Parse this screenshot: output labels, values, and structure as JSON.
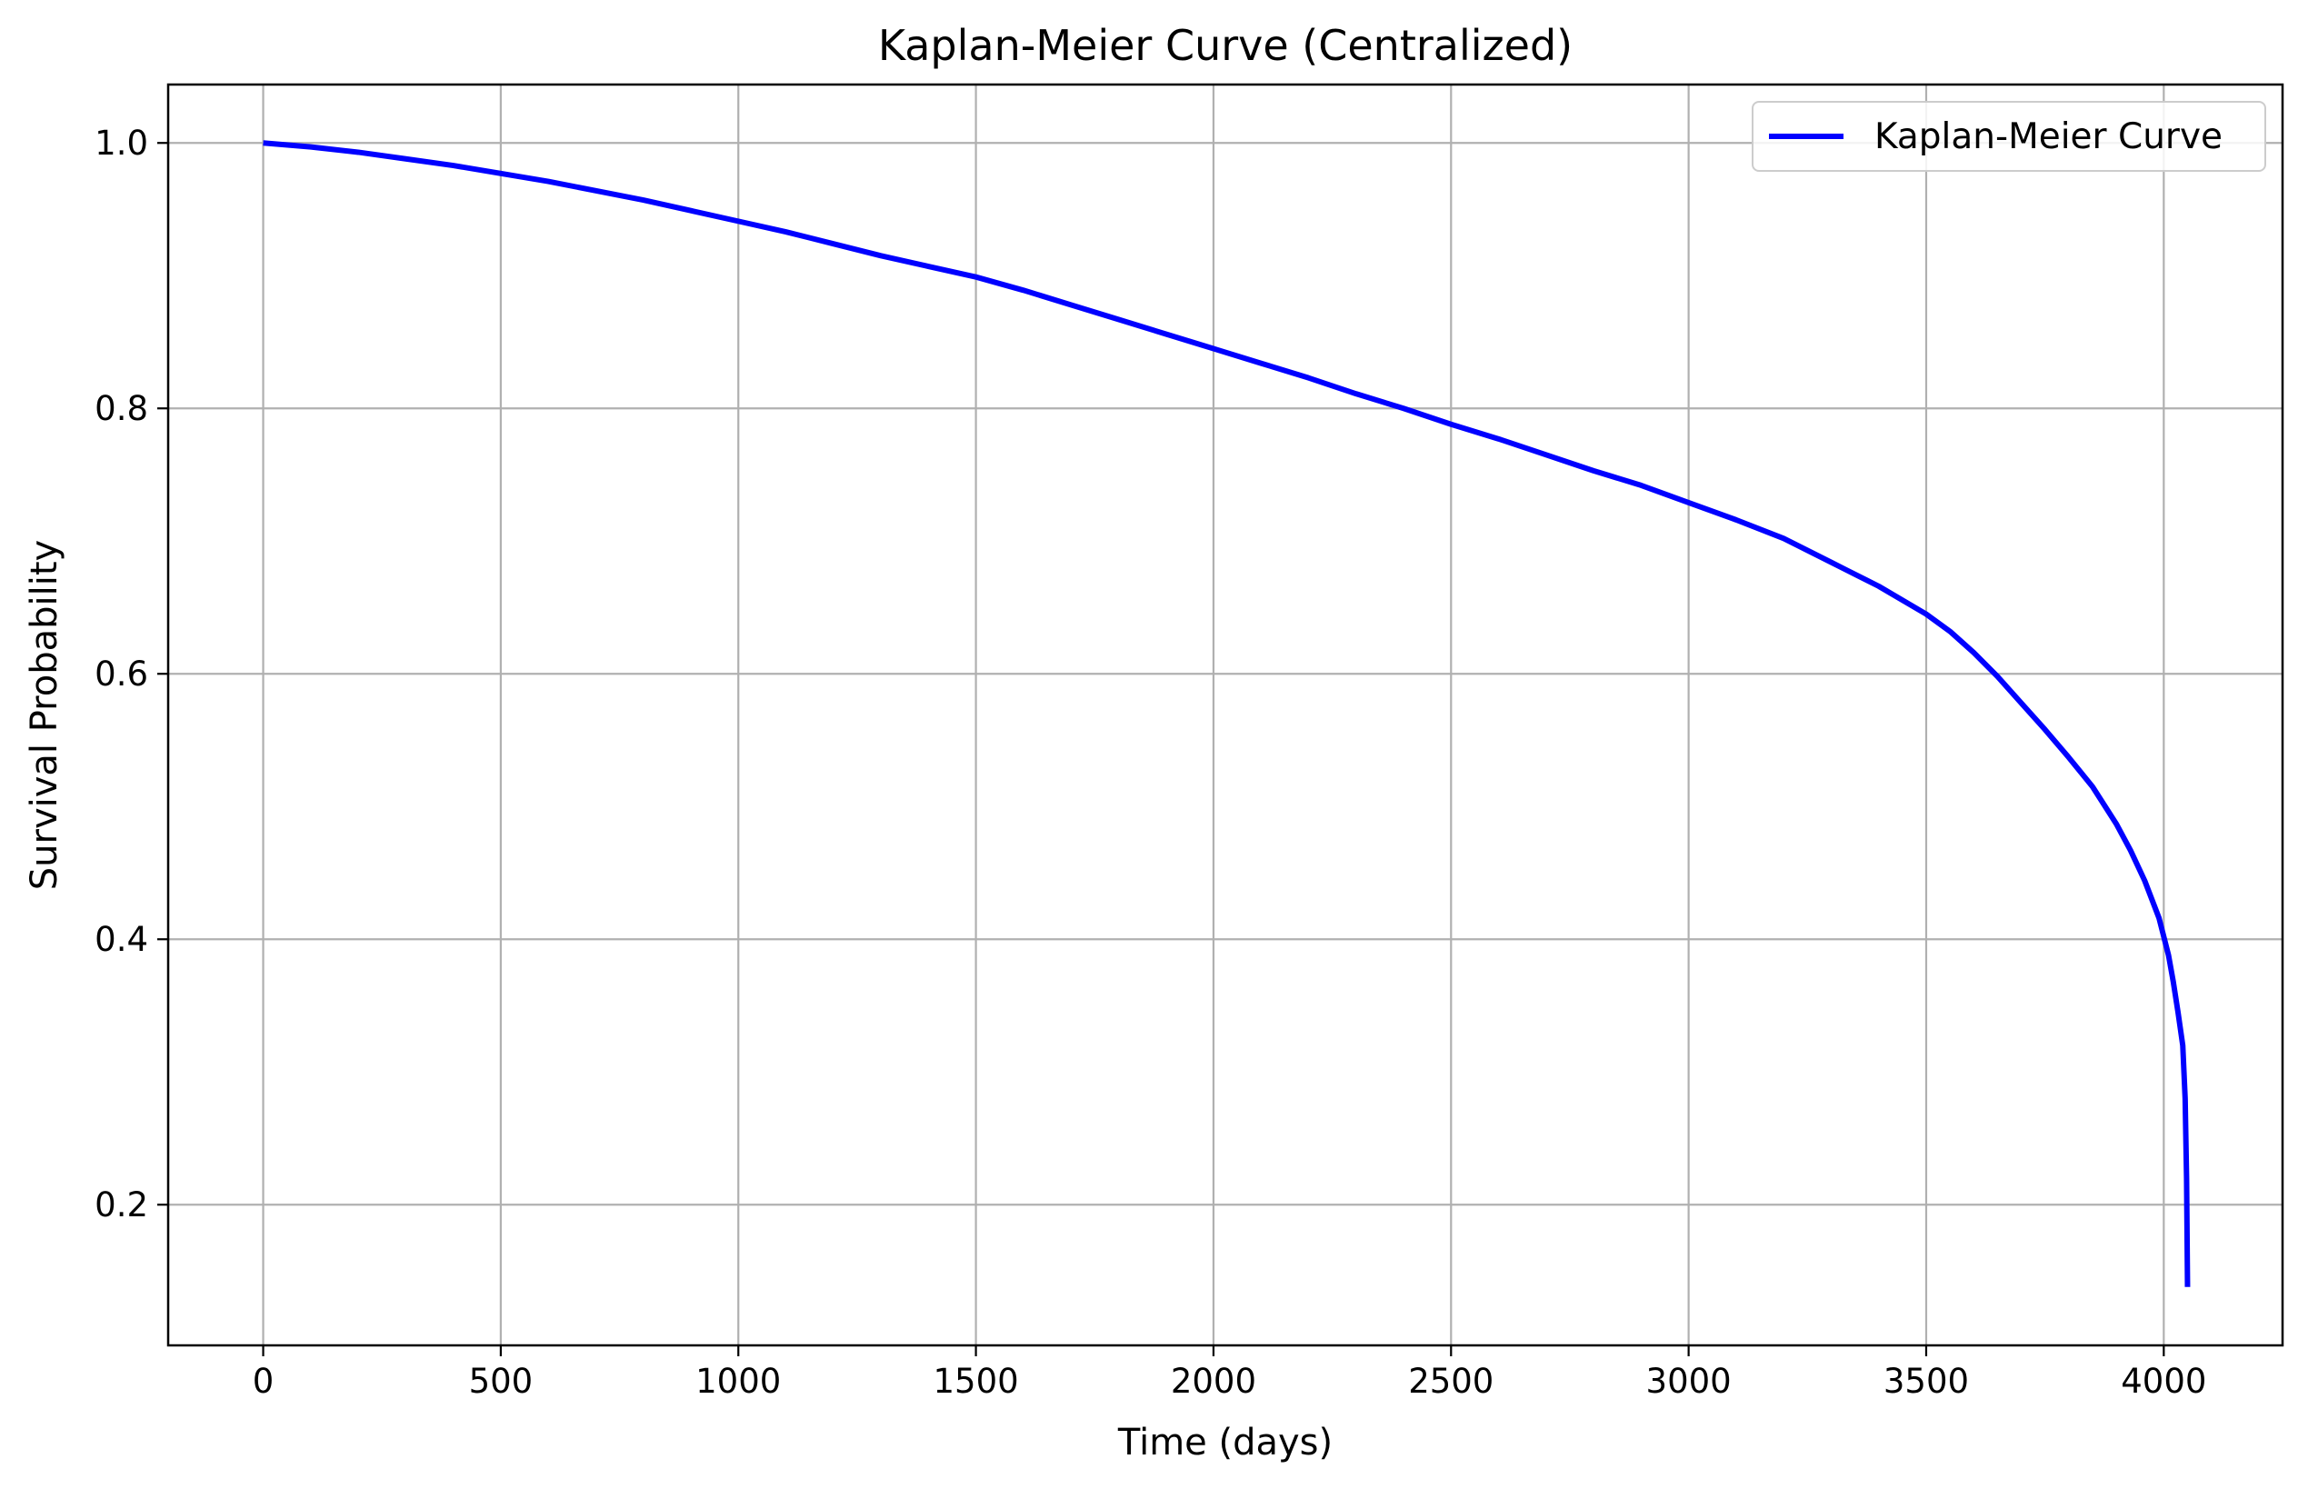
{
  "chart_data": {
    "type": "line",
    "title": "Kaplan-Meier Curve (Centralized)",
    "xlabel": "Time (days)",
    "ylabel": "Survival Probability",
    "xlim": [
      -200,
      4250
    ],
    "ylim": [
      0.094,
      1.044
    ],
    "xticks": [
      0,
      500,
      1000,
      1500,
      2000,
      2500,
      3000,
      3500,
      4000
    ],
    "xtick_labels": [
      "0",
      "500",
      "1000",
      "1500",
      "2000",
      "2500",
      "3000",
      "3500",
      "4000"
    ],
    "yticks": [
      0.2,
      0.4,
      0.6,
      0.8,
      1.0
    ],
    "ytick_labels": [
      "0.2",
      "0.4",
      "0.6",
      "0.8",
      "1.0"
    ],
    "grid": true,
    "legend_position": "upper right",
    "series": [
      {
        "name": "Kaplan-Meier Curve",
        "color": "#0000ff",
        "x": [
          0,
          100,
          200,
          300,
          400,
          500,
          600,
          700,
          800,
          900,
          1000,
          1100,
          1200,
          1300,
          1400,
          1500,
          1600,
          1700,
          1800,
          1900,
          2000,
          2100,
          2200,
          2300,
          2400,
          2500,
          2600,
          2700,
          2800,
          2900,
          3000,
          3100,
          3200,
          3300,
          3400,
          3500,
          3550,
          3600,
          3650,
          3700,
          3750,
          3800,
          3850,
          3900,
          3930,
          3960,
          3990,
          4010,
          4020,
          4030,
          4040,
          4045,
          4048,
          4050
        ],
        "y": [
          1.0,
          0.997,
          0.993,
          0.988,
          0.983,
          0.977,
          0.971,
          0.964,
          0.957,
          0.949,
          0.941,
          0.933,
          0.924,
          0.915,
          0.907,
          0.899,
          0.889,
          0.878,
          0.867,
          0.856,
          0.845,
          0.834,
          0.823,
          0.811,
          0.8,
          0.788,
          0.777,
          0.765,
          0.753,
          0.742,
          0.729,
          0.716,
          0.702,
          0.684,
          0.666,
          0.645,
          0.632,
          0.616,
          0.598,
          0.578,
          0.558,
          0.537,
          0.515,
          0.487,
          0.467,
          0.444,
          0.416,
          0.388,
          0.368,
          0.345,
          0.32,
          0.28,
          0.22,
          0.138
        ]
      }
    ]
  }
}
